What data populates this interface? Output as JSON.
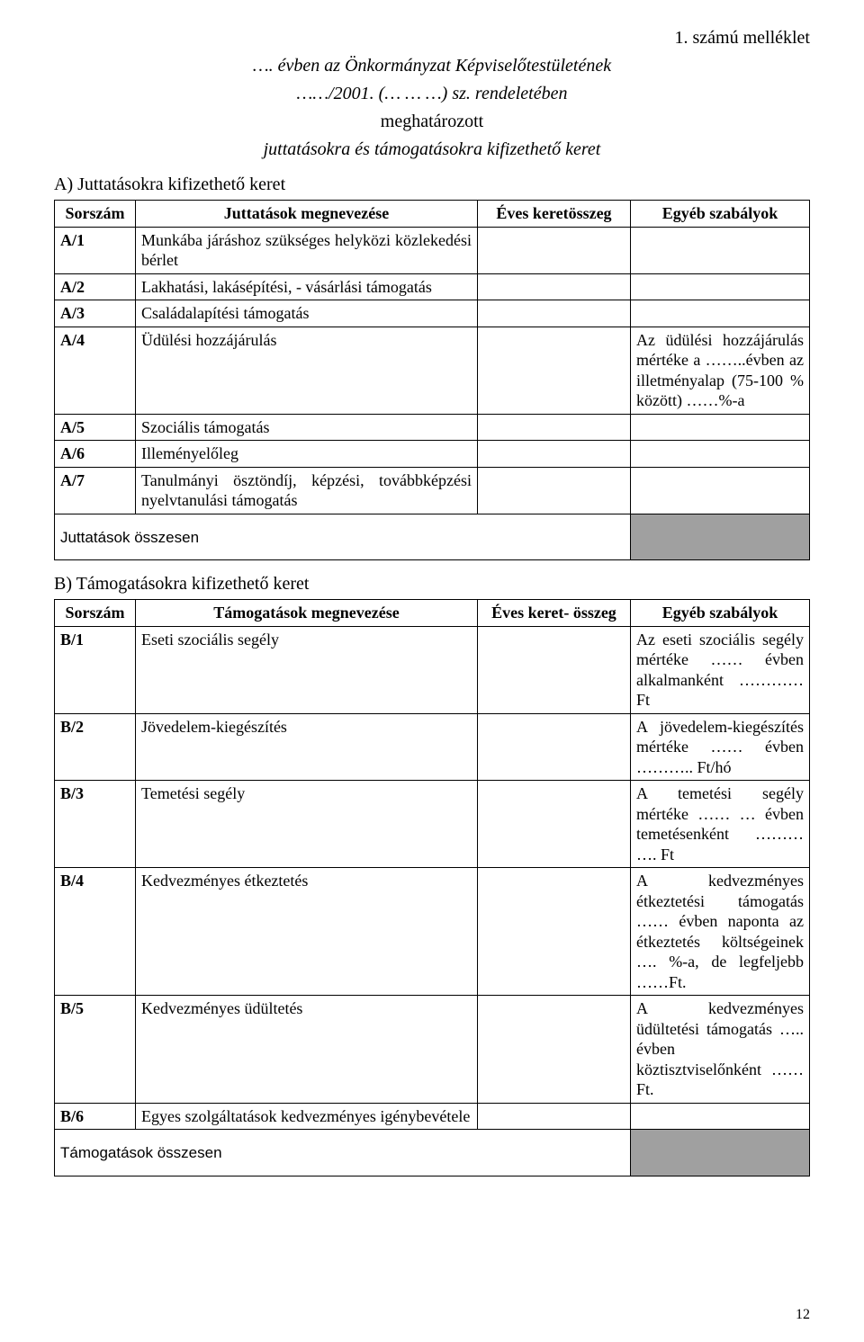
{
  "page": {
    "appendix": "1. számú melléklet",
    "title_line1": "…. évben az Önkormányzat Képviselőtestületének",
    "title_line2": "……/2001. (… … …) sz. rendeletében",
    "title_line3": "meghatározott",
    "title_line4": "juttatásokra és támogatásokra kifizethető keret",
    "page_number": "12"
  },
  "sectionA": {
    "title": "A) Juttatásokra kifizethető keret",
    "headers": {
      "sor": "Sorszám",
      "name": "Juttatások megnevezése",
      "keret": "Éves keretösszeg",
      "egyeb": "Egyéb szabályok"
    },
    "rows": [
      {
        "sor": "A/1",
        "name": "Munkába járáshoz szükséges helyközi közlekedési bérlet",
        "keret": "",
        "egyeb": ""
      },
      {
        "sor": "A/2",
        "name": "Lakhatási, lakásépítési, - vásárlási támogatás",
        "keret": "",
        "egyeb": ""
      },
      {
        "sor": "A/3",
        "name": "Családalapítési támogatás",
        "keret": "",
        "egyeb": ""
      },
      {
        "sor": "A/4",
        "name": "Üdülési hozzájárulás",
        "keret": "",
        "egyeb": "Az üdülési hozzájárulás mértéke a ……..évben az illetményalap (75-100 % között) ……%-a"
      },
      {
        "sor": "A/5",
        "name": "Szociális támogatás",
        "keret": "",
        "egyeb": ""
      },
      {
        "sor": "A/6",
        "name": "Illeményelőleg",
        "keret": "",
        "egyeb": ""
      },
      {
        "sor": "A/7",
        "name": "Tanulmányi ösztöndíj, képzési, továbbképzési nyelvtanulási támogatás",
        "keret": "",
        "egyeb": ""
      }
    ],
    "sum_label": "Juttatások összesen"
  },
  "sectionB": {
    "title": "B) Támogatásokra kifizethető keret",
    "headers": {
      "sor": "Sorszám",
      "name": "Támogatások megnevezése",
      "keret": "Éves keret- összeg",
      "egyeb": "Egyéb szabályok"
    },
    "rows": [
      {
        "sor": "B/1",
        "name": "Eseti szociális segély",
        "keret": "",
        "egyeb": "Az eseti szociális segély mértéke …… évben alkalmanként ………… Ft"
      },
      {
        "sor": "B/2",
        "name": "Jövedelem-kiegészítés",
        "keret": "",
        "egyeb": "A jövedelem-kiegészítés mértéke …… évben ……….. Ft/hó"
      },
      {
        "sor": "B/3",
        "name": "Temetési segély",
        "keret": "",
        "egyeb": "A temetési segély mértéke …… … évben temetésenként ……… …. Ft"
      },
      {
        "sor": "B/4",
        "name": "Kedvezményes étkeztetés",
        "keret": "",
        "egyeb": "A kedvezményes étkeztetési támogatás …… évben naponta az étkeztetés költségeinek …. %-a, de legfeljebb ……Ft."
      },
      {
        "sor": "B/5",
        "name": "Kedvezményes üdültetés",
        "keret": "",
        "egyeb": "A kedvezményes üdültetési támogatás ….. évben köztisztviselőnként …… Ft."
      },
      {
        "sor": "B/6",
        "name": "Egyes szolgáltatások kedvezményes igénybevétele",
        "keret": "",
        "egyeb": ""
      }
    ],
    "sum_label": "Támogatások összesen"
  }
}
